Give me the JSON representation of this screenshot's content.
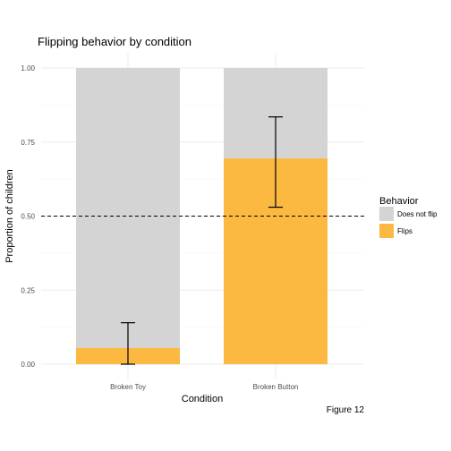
{
  "chart_data": {
    "type": "bar",
    "stacked": true,
    "title": "Flipping behavior by condition",
    "xlabel": "Condition",
    "ylabel": "Proportion of children",
    "caption": "Figure 12",
    "categories": [
      "Broken Toy",
      "Broken Button"
    ],
    "ylim": [
      0,
      1
    ],
    "yticks": [
      "0.00",
      "0.25",
      "0.50",
      "0.75",
      "1.00"
    ],
    "ytick_values": [
      0,
      0.25,
      0.5,
      0.75,
      1.0
    ],
    "series": [
      {
        "name": "Flips",
        "color": "#FBB942",
        "values": [
          0.055,
          0.695
        ]
      },
      {
        "name": "Does not flip",
        "color": "#D4D4D4",
        "values": [
          0.945,
          0.305
        ]
      }
    ],
    "error_bars": [
      {
        "category": "Broken Toy",
        "low": 0.0,
        "high": 0.14
      },
      {
        "category": "Broken Button",
        "low": 0.53,
        "high": 0.835
      }
    ],
    "reference_line": {
      "y": 0.5,
      "style": "dashed"
    },
    "legend": {
      "title": "Behavior",
      "position": "right",
      "entries": [
        {
          "label": "Does not flip",
          "color": "#D4D4D4"
        },
        {
          "label": "Flips",
          "color": "#FBB942"
        }
      ]
    },
    "grid": true
  }
}
